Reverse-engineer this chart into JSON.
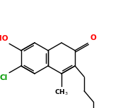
{
  "background_color": "#ffffff",
  "bond_color": "#000000",
  "atom_colors": {
    "O": "#ff0000",
    "Cl": "#009900",
    "C": "#000000"
  },
  "figsize": [
    1.91,
    1.54
  ],
  "dpi": 100,
  "bond_lw": 1.0,
  "bl": 1.0,
  "scale": 22.0,
  "ox": 68,
  "oy": 72
}
